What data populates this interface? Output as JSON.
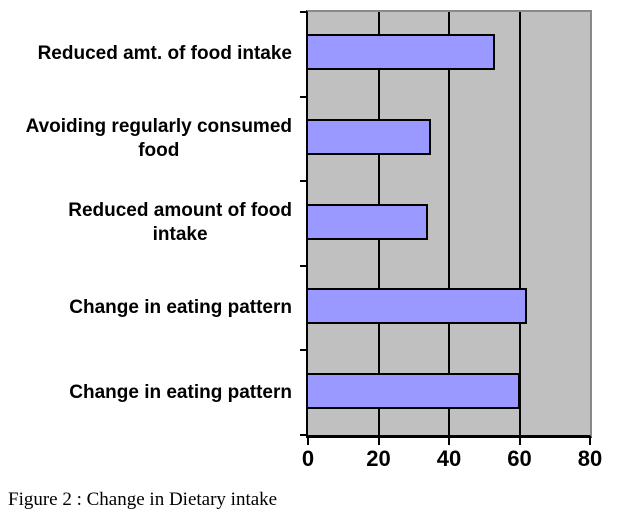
{
  "figure": {
    "caption": "Figure 2 : Change in Dietary intake"
  },
  "chart_data": {
    "type": "bar",
    "orientation": "horizontal",
    "title": "",
    "categories": [
      "Reduced amt. of food intake",
      "Avoiding regularly consumed\nfood",
      "Reduced amount of food\nintake",
      "Change in eating pattern",
      "Change in eating pattern"
    ],
    "values": [
      53,
      35,
      34,
      62,
      60
    ],
    "xlabel": "",
    "ylabel": "",
    "xlim": [
      0,
      80
    ],
    "x_ticks": [
      0,
      20,
      40,
      60,
      80
    ],
    "x_tick_labels": [
      "0",
      "20",
      "40",
      "60",
      "80"
    ],
    "grid": "vertical major gridlines",
    "legend_position": "none",
    "colors": {
      "bar_fill": "#9999FF",
      "bar_border": "#000000",
      "plot_background": "#C0C0C0",
      "plot_border": "#898989",
      "axis": "#000000",
      "text": "#000000"
    }
  }
}
